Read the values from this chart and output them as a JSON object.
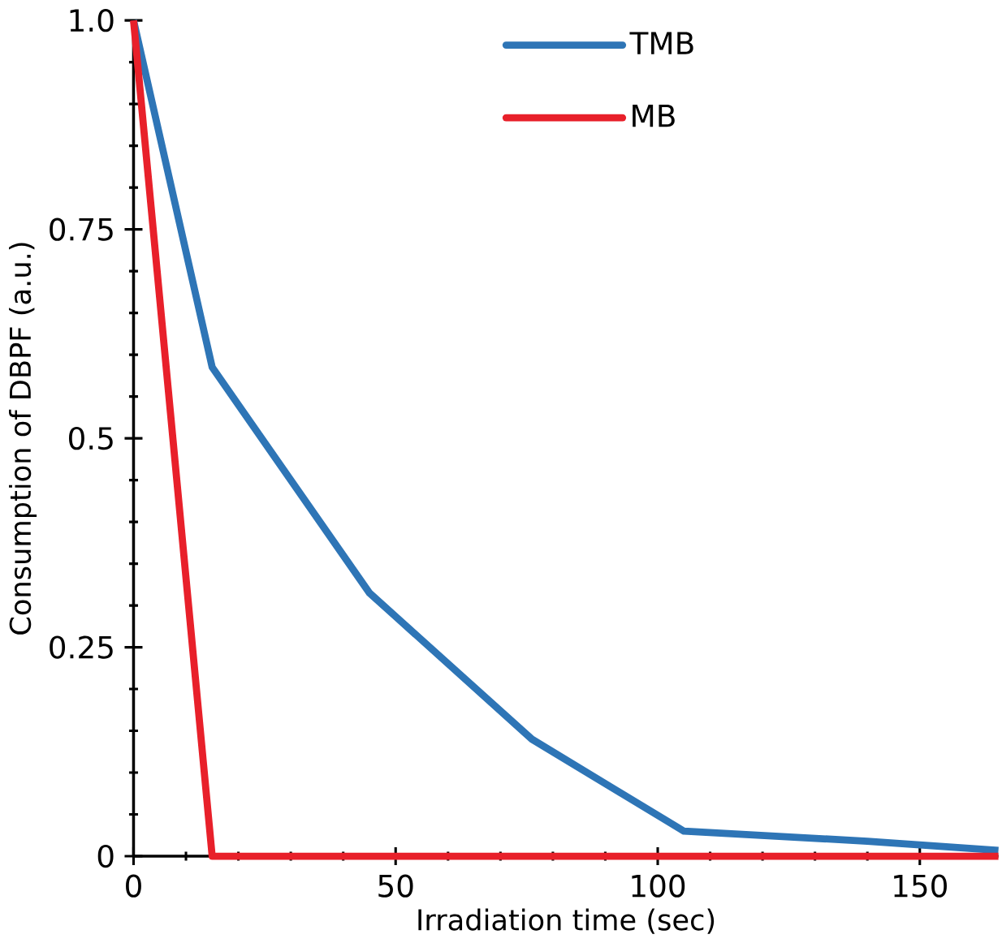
{
  "chart_data": {
    "type": "line",
    "xlabel": "Irradiation time (sec)",
    "ylabel": "Consumption of DBPF (a.u.)",
    "xlim": [
      0,
      165
    ],
    "xticks": [
      0,
      50,
      100,
      150
    ],
    "ylim": [
      0,
      1.0
    ],
    "yticks": [
      {
        "value": 0,
        "label": "0"
      },
      0.25,
      {
        "value": 0.5,
        "label": "0.5"
      },
      0.75,
      {
        "value": 1.0,
        "label": "1.0"
      }
    ],
    "series": [
      {
        "name": "TMB",
        "color": "#2e75b6",
        "x": [
          0,
          15,
          45,
          76,
          105,
          140,
          165
        ],
        "values": [
          1.0,
          0.585,
          0.315,
          0.14,
          0.03,
          0.018,
          0.007
        ]
      },
      {
        "name": "MB",
        "color": "#e8202a",
        "x": [
          0,
          15,
          165
        ],
        "values": [
          1.0,
          0,
          0
        ]
      }
    ],
    "legend": "top right",
    "grid": false,
    "marker": "none",
    "line_style": "solid"
  }
}
